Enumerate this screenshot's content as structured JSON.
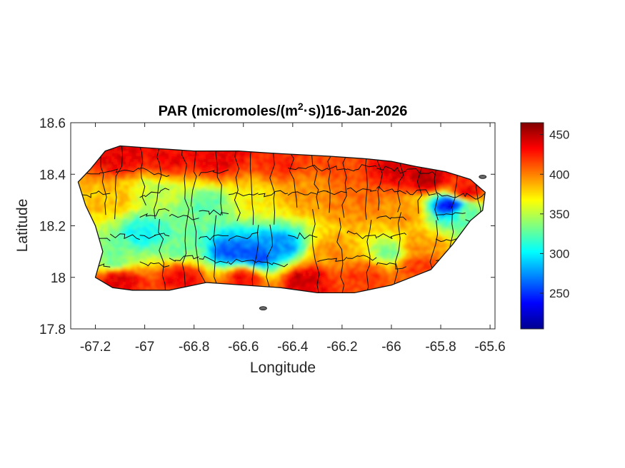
{
  "chart_data": {
    "type": "heatmap",
    "title": {
      "prefix": "PAR (micromoles/(m",
      "superscript": "2",
      "suffix": "·s))16-Jan-2026"
    },
    "xlabel": "Longitude",
    "ylabel": "Latitude",
    "xlim": [
      -67.3,
      -65.58
    ],
    "ylim": [
      17.8,
      18.6
    ],
    "xticks": [
      -67.2,
      -67,
      -66.8,
      -66.6,
      -66.4,
      -66.2,
      -66,
      -65.8,
      -65.6
    ],
    "xtick_labels": [
      "-67.2",
      "-67",
      "-66.8",
      "-66.6",
      "-66.4",
      "-66.2",
      "-66",
      "-65.8",
      "-65.6"
    ],
    "yticks": [
      17.8,
      18,
      18.2,
      18.4,
      18.6
    ],
    "ytick_labels": [
      "17.8",
      "18",
      "18.2",
      "18.4",
      "18.6"
    ],
    "colorbar": {
      "colormap": "jet",
      "range": [
        205,
        465
      ],
      "ticks": [
        250,
        300,
        350,
        400,
        450
      ],
      "tick_labels": [
        "250",
        "300",
        "350",
        "400",
        "450"
      ]
    },
    "island_outline_lonlat": [
      [
        -67.27,
        18.37
      ],
      [
        -67.22,
        18.42
      ],
      [
        -67.16,
        18.49
      ],
      [
        -67.1,
        18.51
      ],
      [
        -66.95,
        18.5
      ],
      [
        -66.8,
        18.49
      ],
      [
        -66.62,
        18.49
      ],
      [
        -66.45,
        18.48
      ],
      [
        -66.25,
        18.47
      ],
      [
        -66.1,
        18.46
      ],
      [
        -66.0,
        18.45
      ],
      [
        -65.9,
        18.43
      ],
      [
        -65.78,
        18.41
      ],
      [
        -65.68,
        18.38
      ],
      [
        -65.62,
        18.33
      ],
      [
        -65.63,
        18.26
      ],
      [
        -65.68,
        18.22
      ],
      [
        -65.75,
        18.13
      ],
      [
        -65.84,
        18.03
      ],
      [
        -65.92,
        18.0
      ],
      [
        -66.0,
        17.97
      ],
      [
        -66.15,
        17.94
      ],
      [
        -66.3,
        17.94
      ],
      [
        -66.45,
        17.96
      ],
      [
        -66.6,
        17.97
      ],
      [
        -66.75,
        17.98
      ],
      [
        -66.9,
        17.95
      ],
      [
        -67.05,
        17.95
      ],
      [
        -67.13,
        17.96
      ],
      [
        -67.2,
        18.0
      ],
      [
        -67.17,
        18.1
      ],
      [
        -67.2,
        18.2
      ],
      [
        -67.24,
        18.28
      ],
      [
        -67.27,
        18.37
      ]
    ],
    "field_anchors": [
      {
        "lon": -67.1,
        "lat": 18.47,
        "value": 440
      },
      {
        "lon": -66.9,
        "lat": 18.46,
        "value": 435
      },
      {
        "lon": -66.7,
        "lat": 18.46,
        "value": 440
      },
      {
        "lon": -66.45,
        "lat": 18.45,
        "value": 425
      },
      {
        "lon": -66.2,
        "lat": 18.44,
        "value": 415
      },
      {
        "lon": -66.0,
        "lat": 18.42,
        "value": 440
      },
      {
        "lon": -65.85,
        "lat": 18.38,
        "value": 450
      },
      {
        "lon": -65.7,
        "lat": 18.33,
        "value": 440
      },
      {
        "lon": -67.15,
        "lat": 18.3,
        "value": 385
      },
      {
        "lon": -66.95,
        "lat": 18.33,
        "value": 350
      },
      {
        "lon": -66.75,
        "lat": 18.28,
        "value": 325
      },
      {
        "lon": -66.55,
        "lat": 18.3,
        "value": 370
      },
      {
        "lon": -66.35,
        "lat": 18.32,
        "value": 395
      },
      {
        "lon": -66.15,
        "lat": 18.3,
        "value": 405
      },
      {
        "lon": -65.95,
        "lat": 18.25,
        "value": 395
      },
      {
        "lon": -65.76,
        "lat": 18.28,
        "value": 235
      },
      {
        "lon": -65.7,
        "lat": 18.25,
        "value": 330
      },
      {
        "lon": -67.0,
        "lat": 18.17,
        "value": 305
      },
      {
        "lon": -66.85,
        "lat": 18.12,
        "value": 330
      },
      {
        "lon": -66.65,
        "lat": 18.1,
        "value": 260
      },
      {
        "lon": -66.55,
        "lat": 18.08,
        "value": 255
      },
      {
        "lon": -66.45,
        "lat": 18.12,
        "value": 275
      },
      {
        "lon": -66.25,
        "lat": 18.1,
        "value": 395
      },
      {
        "lon": -66.0,
        "lat": 18.1,
        "value": 335
      },
      {
        "lon": -65.9,
        "lat": 18.12,
        "value": 395
      },
      {
        "lon": -67.12,
        "lat": 18.07,
        "value": 330
      },
      {
        "lon": -67.1,
        "lat": 17.99,
        "value": 440
      },
      {
        "lon": -66.85,
        "lat": 18.0,
        "value": 435
      },
      {
        "lon": -66.6,
        "lat": 18.0,
        "value": 430
      },
      {
        "lon": -66.35,
        "lat": 17.99,
        "value": 445
      },
      {
        "lon": -66.1,
        "lat": 18.0,
        "value": 420
      },
      {
        "lon": -65.9,
        "lat": 18.05,
        "value": 420
      }
    ]
  }
}
